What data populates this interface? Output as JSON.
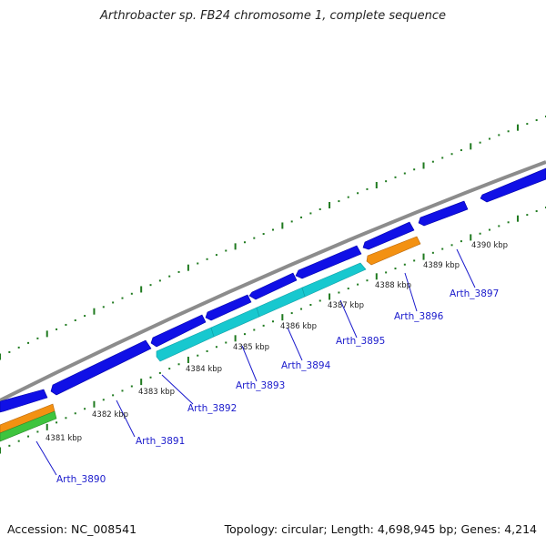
{
  "title": "Arthrobacter sp. FB24 chromosome 1, complete sequence",
  "footer": {
    "accession": "Accession: NC_008541",
    "summary": "Topology: circular; Length: 4,698,945 bp; Genes: 4,214"
  },
  "map": {
    "kbp_labels": [
      "4381 kbp",
      "4382 kbp",
      "4383 kbp",
      "4384 kbp",
      "4385 kbp",
      "4386 kbp",
      "4387 kbp",
      "4388 kbp",
      "4389 kbp",
      "4390 kbp"
    ],
    "gene_labels": [
      "Arth_3890",
      "Arth_3891",
      "Arth_3892",
      "Arth_3893",
      "Arth_3894",
      "Arth_3895",
      "Arth_3896",
      "Arth_3897"
    ],
    "colors": {
      "backbone": "#8c8c8c",
      "cds_forward": "#1010e6",
      "cds_reverse": "#17c8cf",
      "orange_feature": "#f39112",
      "green_feature": "#3ec43e",
      "tick": "#1f7a1f",
      "label": "#1a1acc"
    }
  }
}
